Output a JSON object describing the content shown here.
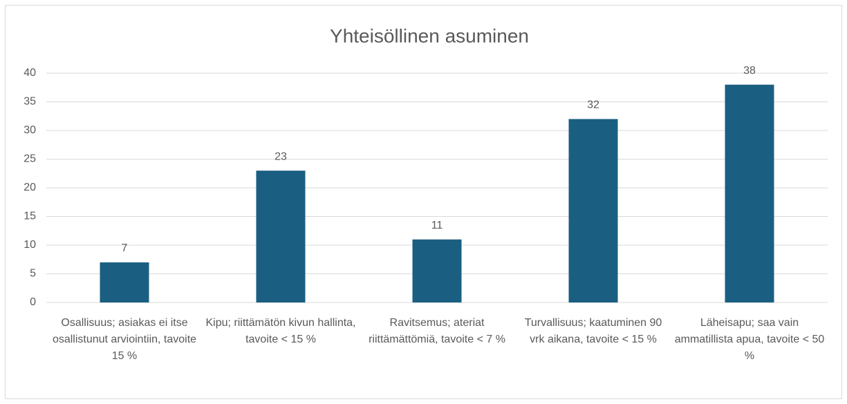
{
  "chart_data": {
    "type": "bar",
    "title": "Yhteisöllinen asuminen",
    "categories": [
      "Osallisuus; asiakas ei itse osallistunut arviointiin, tavoite 15 %",
      "Kipu; riittämätön kivun hallinta, tavoite < 15 %",
      "Ravitsemus; ateriat riittämättömiä, tavoite < 7 %",
      "Turvallisuus; kaatuminen 90 vrk aikana, tavoite < 15 %",
      "Läheisapu; saa vain ammatillista apua, tavoite < 50 %"
    ],
    "values": [
      7,
      23,
      11,
      32,
      38
    ],
    "color": "#1a5f81",
    "ylim": [
      0,
      40
    ],
    "yticks": [
      0,
      5,
      10,
      15,
      20,
      25,
      30,
      35,
      40
    ],
    "grid": true
  }
}
